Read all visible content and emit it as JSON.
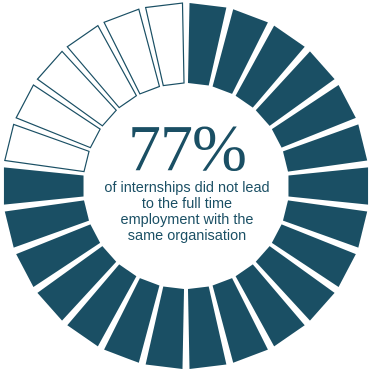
{
  "chart_data": {
    "type": "pie",
    "segments_total": 26,
    "segments_filled": 20,
    "value_percent": 77,
    "headline": "77%",
    "caption": "of internships did not lead to the full time employment with the same organisation",
    "colors": {
      "filled": "#1a4f64",
      "empty": "#ffffff",
      "stroke": "#1a4f64"
    }
  }
}
